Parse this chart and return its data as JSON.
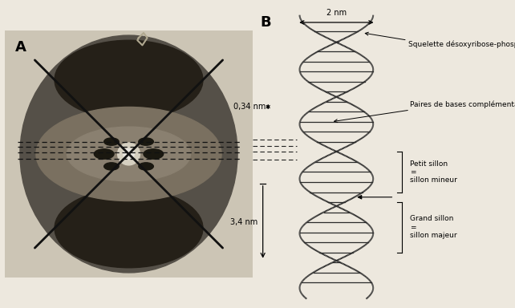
{
  "bg_color": "#ede8de",
  "photo_bg": "#ccc5b5",
  "panel_A_label": "A",
  "panel_B_label": "B",
  "label_fontsize": 13,
  "annotation_fontsize": 7,
  "dim_2nm": "2 nm",
  "dim_034nm": "0,34 nm",
  "dim_34nm": "3,4 nm",
  "label_squelette": "Squelette désoxyribose-phosphate",
  "label_paires": "Paires de bases complémentaires",
  "label_petit_sillon": "Petit sillon\n=\nsillon mineur",
  "label_grand_sillon": "Grand sillon\n=\nsillon majeur",
  "dna_color": "#2a2a2a",
  "xray_cross_color": "#111111",
  "dashed_line_color": "#333333",
  "dna_lw": 1.4,
  "rung_lw": 0.9,
  "cross_lw": 2.0
}
